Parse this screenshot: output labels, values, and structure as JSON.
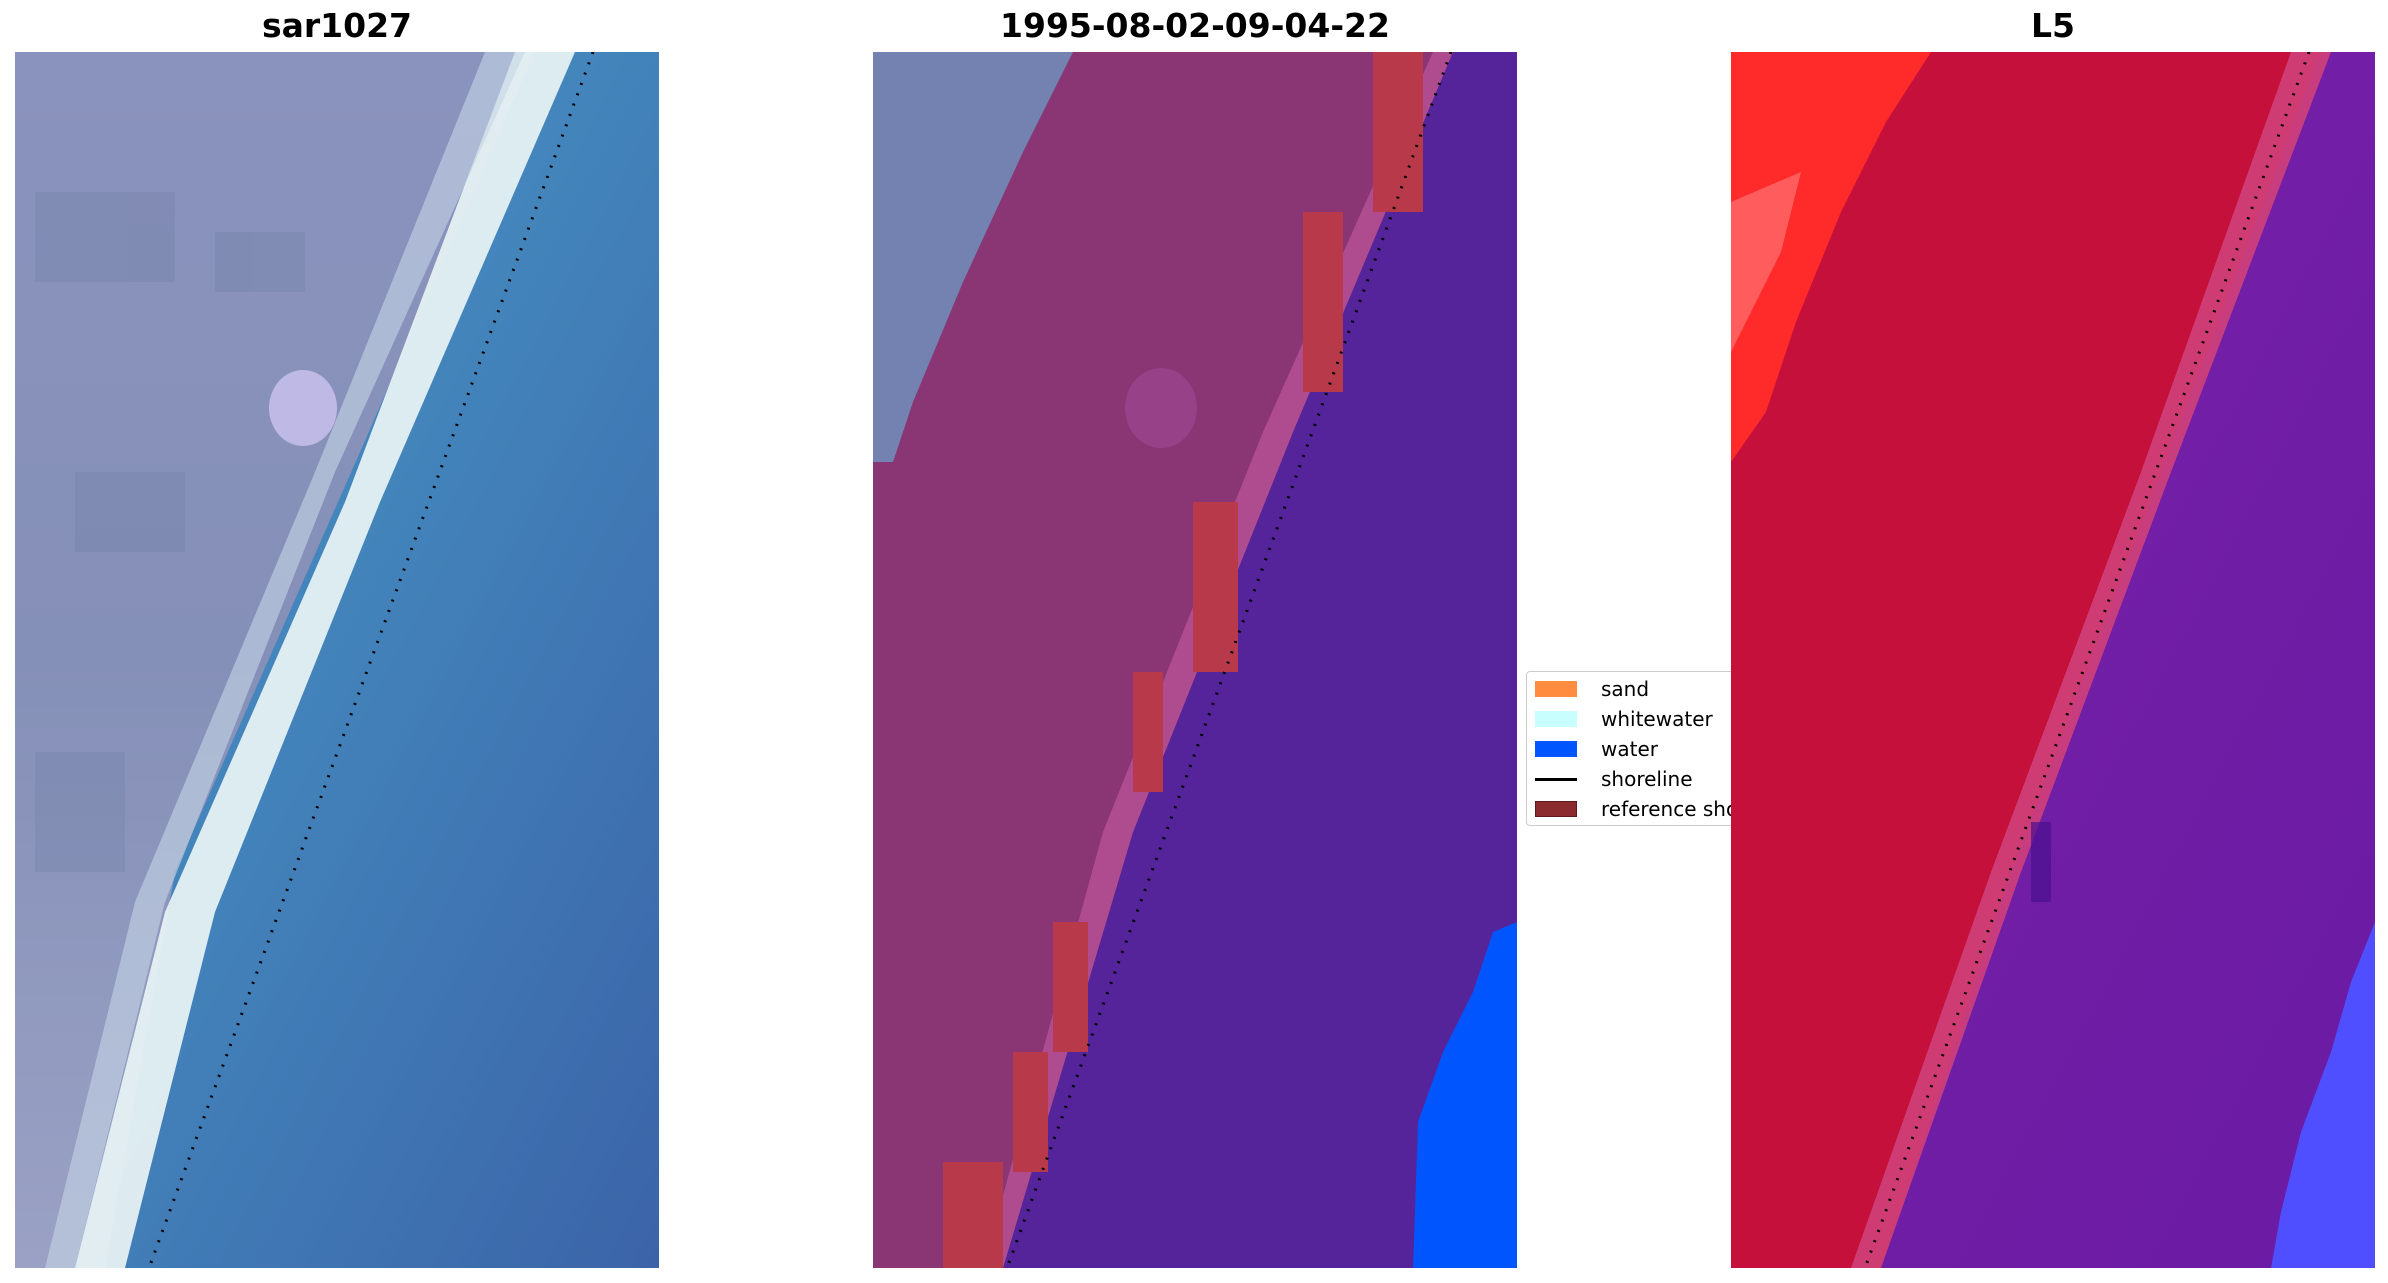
{
  "panels": [
    {
      "title": "sar1027",
      "image": "rgb-satellite-image"
    },
    {
      "title": "1995-08-02-09-04-22",
      "image": "classified-overlay-image"
    },
    {
      "title": "L5",
      "image": "mndwi-index-image"
    }
  ],
  "legend": {
    "items": [
      {
        "label": "sand",
        "kind": "patch",
        "color": "#ff8c3f"
      },
      {
        "label": "whitewater",
        "kind": "patch",
        "color": "#c8fffe"
      },
      {
        "label": "water",
        "kind": "patch",
        "color": "#0055ff"
      },
      {
        "label": "shoreline",
        "kind": "line",
        "color": "#000000"
      },
      {
        "label": "reference shoreline",
        "kind": "patch",
        "color": "#8b2a2f"
      }
    ]
  },
  "colors": {
    "land_gray_blue": "#8c95b8",
    "whitewater_beach": "#e8f3f4",
    "ocean_blue": "#3f83b8",
    "classified_land": "#8a3674",
    "classified_water": "#55239a",
    "classified_sand_strip": "#b83a4a",
    "index_land_red": "#c4103a",
    "index_water_purple": "#6b1aa0",
    "index_bright_red": "#ff2a2a",
    "index_blue": "#4f4fff"
  }
}
